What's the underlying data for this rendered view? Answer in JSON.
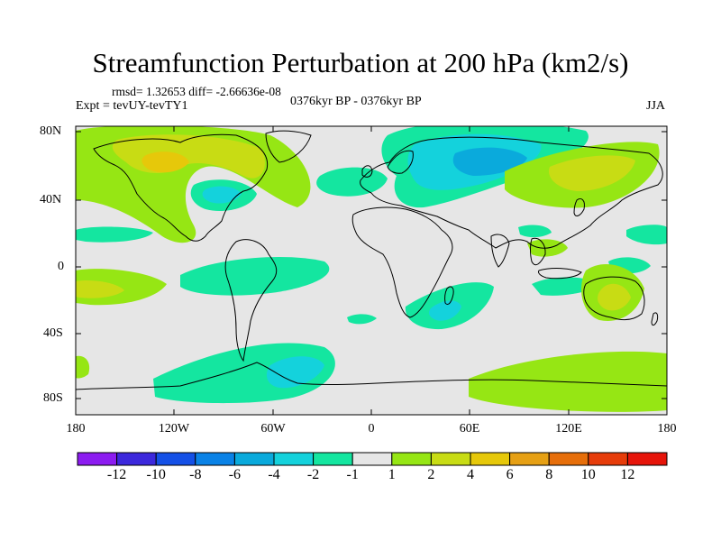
{
  "title": "Streamfunction Perturbation at 200 hPa (km2/s)",
  "stats": "rmsd= 1.32653 diff= -2.66636e-08",
  "experiment": "Expt = tevUY-tevTY1",
  "period": "0376kyr BP - 0376kyr BP",
  "season": "JJA",
  "lat_ticks": [
    "80N",
    "40N",
    "0",
    "40S",
    "80S"
  ],
  "lon_ticks": [
    "180",
    "120W",
    "60W",
    "0",
    "60E",
    "120E",
    "180"
  ],
  "colorbar": {
    "labels": [
      "-12",
      "-10",
      "-8",
      "-6",
      "-4",
      "-2",
      "-1",
      "1",
      "2",
      "4",
      "6",
      "8",
      "10",
      "12"
    ],
    "colors": [
      "#8c1cf0",
      "#3c28dc",
      "#1450e6",
      "#0a82e6",
      "#0aaadc",
      "#14d2dc",
      "#14e6a0",
      "#e6e6e6",
      "#96e614",
      "#c8dc14",
      "#e6c80a",
      "#e6a014",
      "#e66e0a",
      "#e63c0a",
      "#e6140a"
    ]
  },
  "map_style": {
    "background": "#e6e6e6",
    "coastline_color": "#000000"
  }
}
